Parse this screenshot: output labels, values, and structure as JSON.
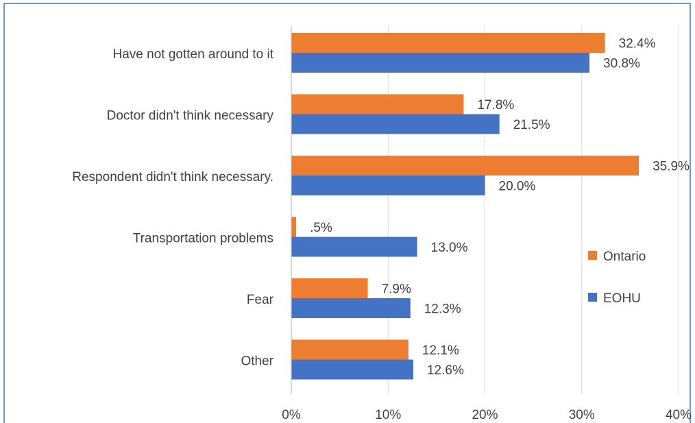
{
  "chart_data": {
    "type": "bar",
    "orientation": "horizontal",
    "categories": [
      "Have not gotten around to it",
      "Doctor didn't think necessary",
      "Respondent didn't think necessary.",
      "Transportation problems",
      "Fear",
      "Other"
    ],
    "series": [
      {
        "name": "Ontario",
        "color": "#ED7D31",
        "values": [
          32.4,
          17.8,
          35.9,
          0.5,
          7.9,
          12.1
        ],
        "labels": [
          "32.4%",
          "17.8%",
          "35.9%",
          ".5%",
          "7.9%",
          "12.1%"
        ]
      },
      {
        "name": "EOHU",
        "color": "#4472C4",
        "values": [
          30.8,
          21.5,
          20.0,
          13.0,
          12.3,
          12.6
        ],
        "labels": [
          "30.8%",
          "21.5%",
          "20.0%",
          "13.0%",
          "12.3%",
          "12.6%"
        ]
      }
    ],
    "xlim": [
      0,
      40
    ],
    "x_ticks": [
      0,
      10,
      20,
      30,
      40
    ],
    "x_tick_labels": [
      "0%",
      "10%",
      "20%",
      "30%",
      "40%"
    ],
    "title": "",
    "xlabel": "",
    "ylabel": "",
    "grid": true,
    "gridline_color": "#D9D9D9",
    "axis_color": "#BFBFBF",
    "border_color": "#4472C4",
    "legend_position": "right"
  }
}
